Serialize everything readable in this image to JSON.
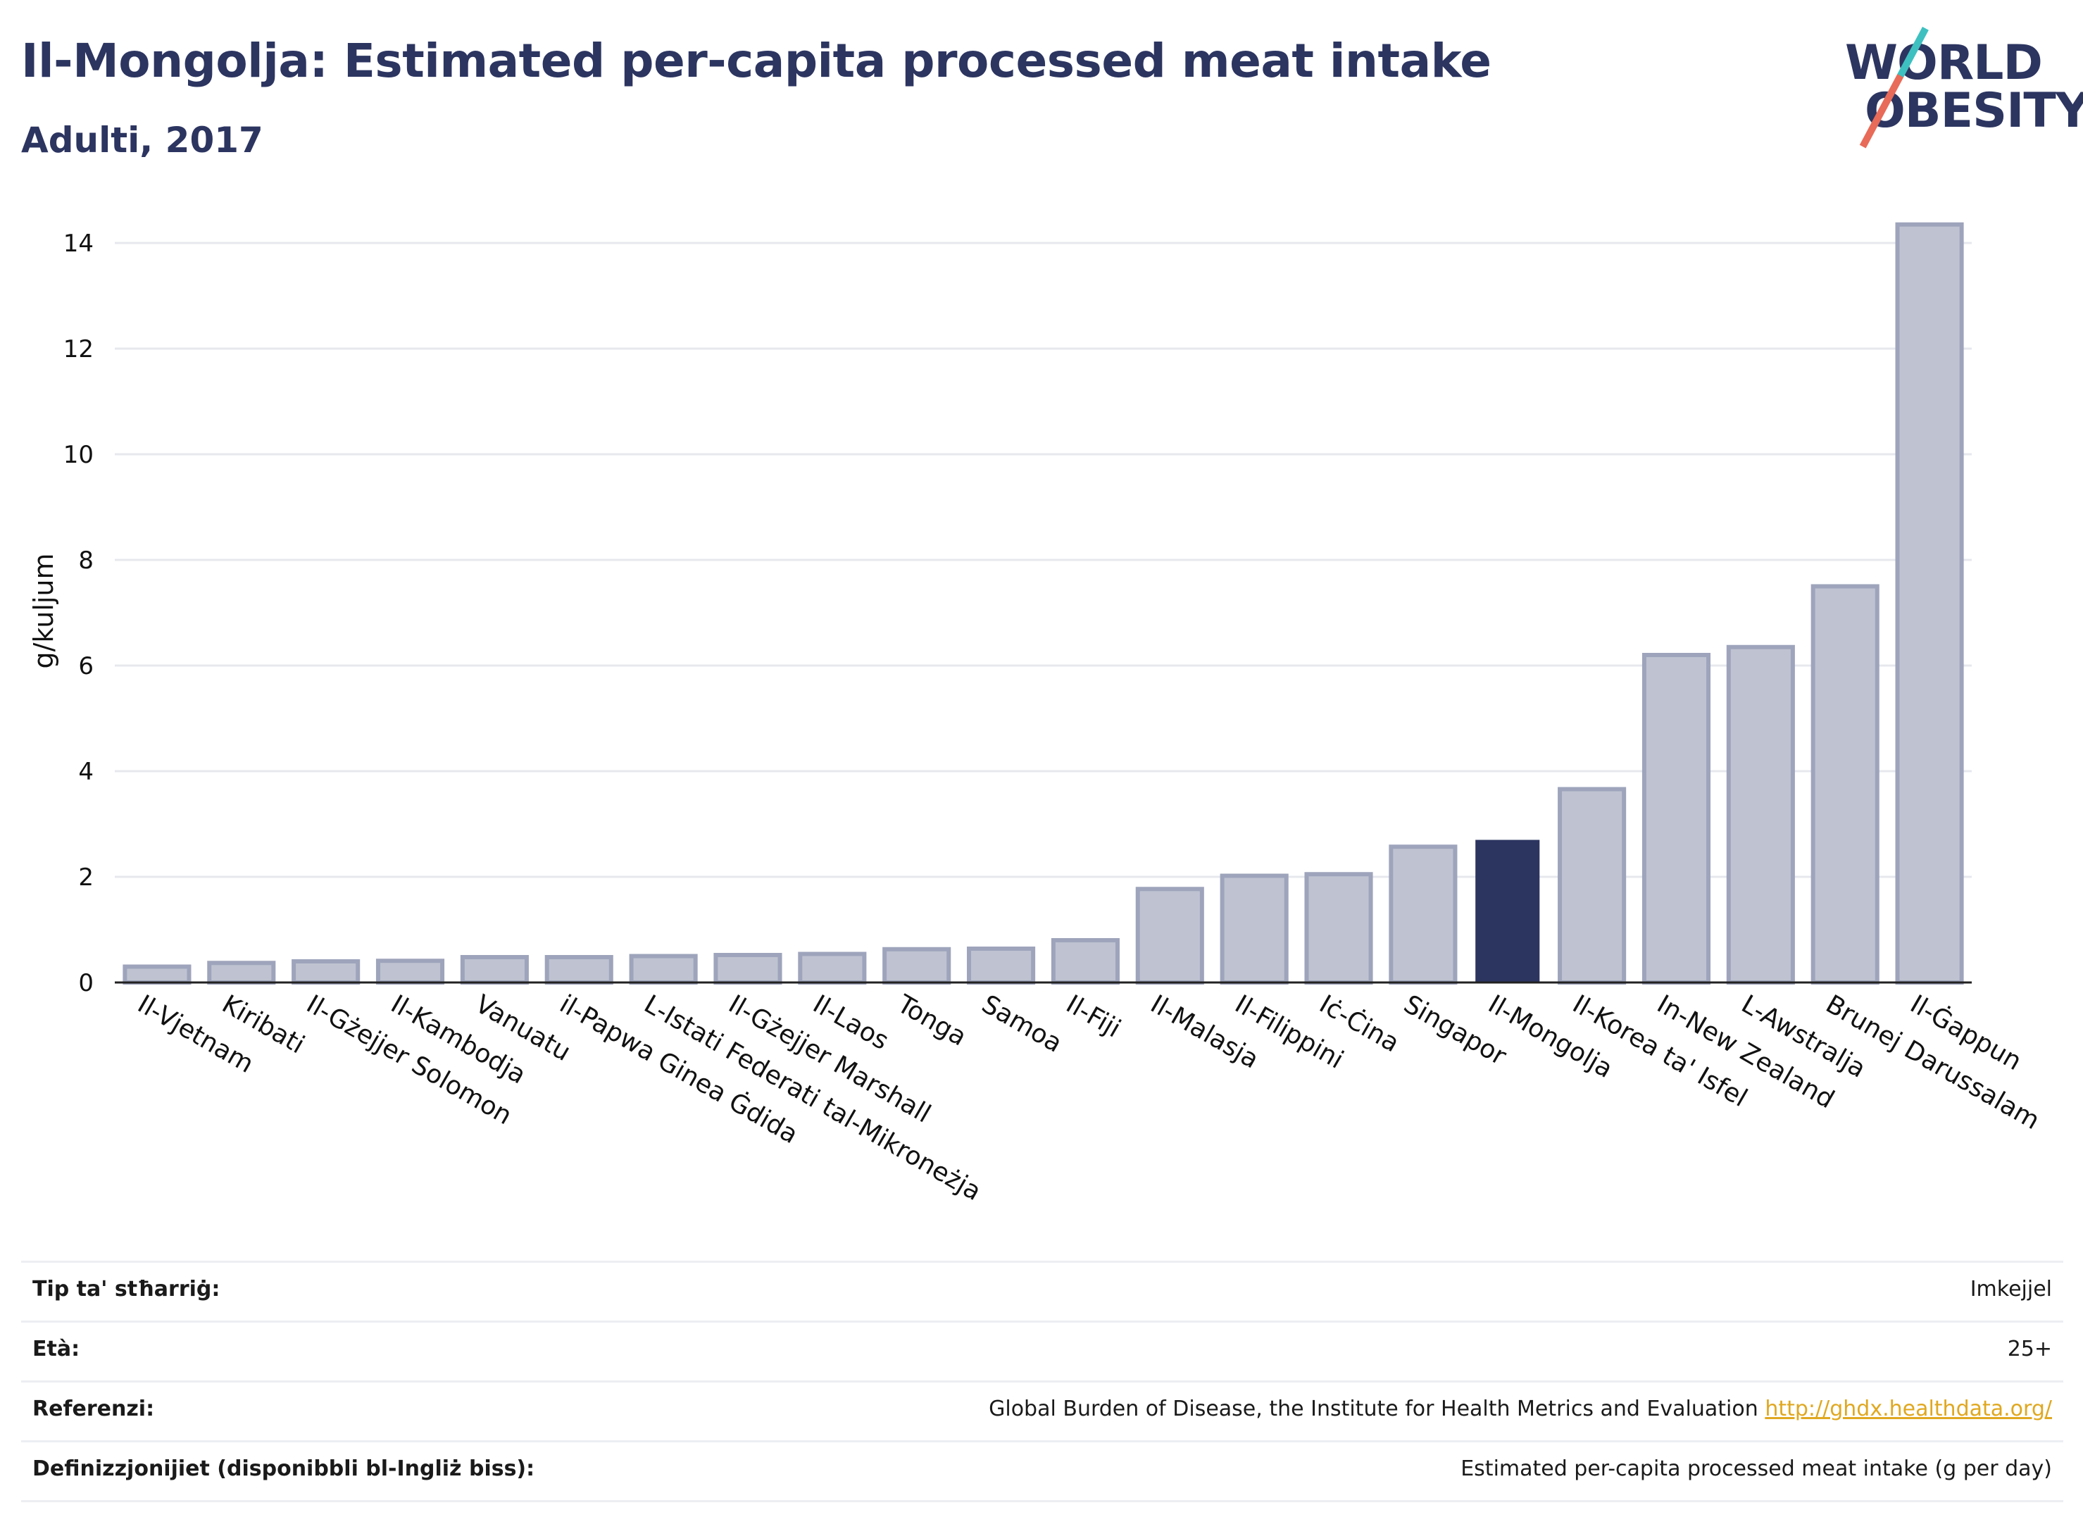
{
  "header": {
    "title": "Il-Mongolja: Estimated per-capita processed meat intake",
    "subtitle": "Adulti, 2017"
  },
  "logo": {
    "line1": "WORLD",
    "line2": "OBESITY"
  },
  "colors": {
    "highlight": "#2c3560",
    "bar": "#bfc3d1",
    "bar_stroke": "#9ea4bb",
    "grid": "#e6e8ee"
  },
  "chart_data": {
    "type": "bar",
    "ylabel": "g/kuljum",
    "ylim": [
      0,
      14.6
    ],
    "yticks": [
      0,
      2,
      4,
      6,
      8,
      10,
      12,
      14
    ],
    "highlight": "Il-Mongolja",
    "grid": true,
    "categories": [
      "Il-Vjetnam",
      "Kiribati",
      "Il-Gżejjer Solomon",
      "Il-Kambodja",
      "Vanuatu",
      "il-Papwa Ginea Ġdida",
      "L-Istati Federati tal-Mikroneżja",
      "Il-Gżejjer Marshall",
      "Il-Laos",
      "Tonga",
      "Samoa",
      "Il-Fiji",
      "Il-Malasja",
      "Il-Filippini",
      "Iċ-Ċina",
      "Singapor",
      "Il-Mongolja",
      "Il-Korea ta' Isfel",
      "In-New Zealand",
      "L-Awstralja",
      "Brunej Darussalam",
      "Il-Ġappun"
    ],
    "values": [
      0.3,
      0.37,
      0.4,
      0.41,
      0.48,
      0.48,
      0.5,
      0.52,
      0.54,
      0.63,
      0.64,
      0.8,
      1.77,
      2.02,
      2.05,
      2.57,
      2.7,
      3.66,
      6.2,
      6.35,
      7.5,
      14.35
    ]
  },
  "info": [
    {
      "label": "Tip ta' stħarriġ:",
      "value": "Imkejjel"
    },
    {
      "label": "Età:",
      "value": "25+"
    },
    {
      "label": "Referenzi:",
      "value": "Global Burden of Disease, the Institute for Health Metrics and Evaluation",
      "link": "http://ghdx.healthdata.org/"
    },
    {
      "label": "Definizzjonijiet (disponibbli bl-Ingliż biss):",
      "value": "Estimated per-capita processed meat intake (g per day)"
    }
  ]
}
